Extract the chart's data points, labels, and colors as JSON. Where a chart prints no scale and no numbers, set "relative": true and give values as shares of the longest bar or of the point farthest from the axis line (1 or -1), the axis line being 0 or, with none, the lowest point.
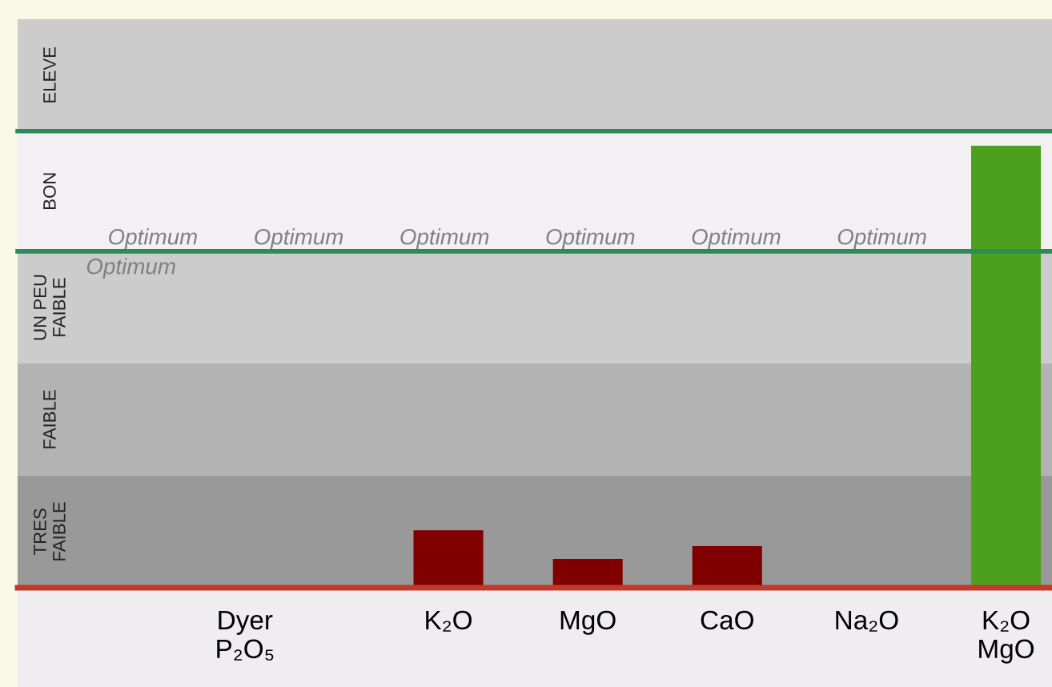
{
  "chart_data": {
    "type": "bar",
    "relative": true,
    "categories": [
      "Dyer\nP₂O₅",
      "K₂O",
      "MgO",
      "CaO",
      "Na₂O",
      "K₂O\nMgO"
    ],
    "values": [
      null,
      0.13,
      0.065,
      0.094,
      null,
      1
    ],
    "colors": [
      "#800000",
      "#800000",
      "#800000",
      "#800000",
      "#800000",
      "#4ca01e"
    ],
    "bands": [
      {
        "axis": "y",
        "from": 0,
        "to": 0.254,
        "label": "TRES FAIBLE",
        "color": "#999999"
      },
      {
        "axis": "y",
        "from": 0.254,
        "to": 0.507,
        "label": "FAIBLE",
        "color": "#b3b3b3"
      },
      {
        "axis": "y",
        "from": 0.507,
        "to": 0.761,
        "label": "UN PEU FAIBLE",
        "color": "#cccccc"
      },
      {
        "axis": "y",
        "from": 0.761,
        "to": 1.033,
        "label": "BON",
        "color": "#f2f0f2"
      },
      {
        "axis": "y",
        "from": 1.033,
        "to": 1.286,
        "label": "ELEVE",
        "color": "#cccccc"
      }
    ],
    "ref_lines": [
      {
        "axis": "y",
        "value": 0.761,
        "color": "#2e8b57"
      },
      {
        "axis": "y",
        "value": 1.033,
        "color": "#2e8b57"
      }
    ],
    "annotations": [
      "Optimum",
      "Optimum",
      "Optimum",
      "Optimum",
      "Optimum",
      "Optimum",
      "Optimum"
    ],
    "grid": false,
    "legend": false
  }
}
